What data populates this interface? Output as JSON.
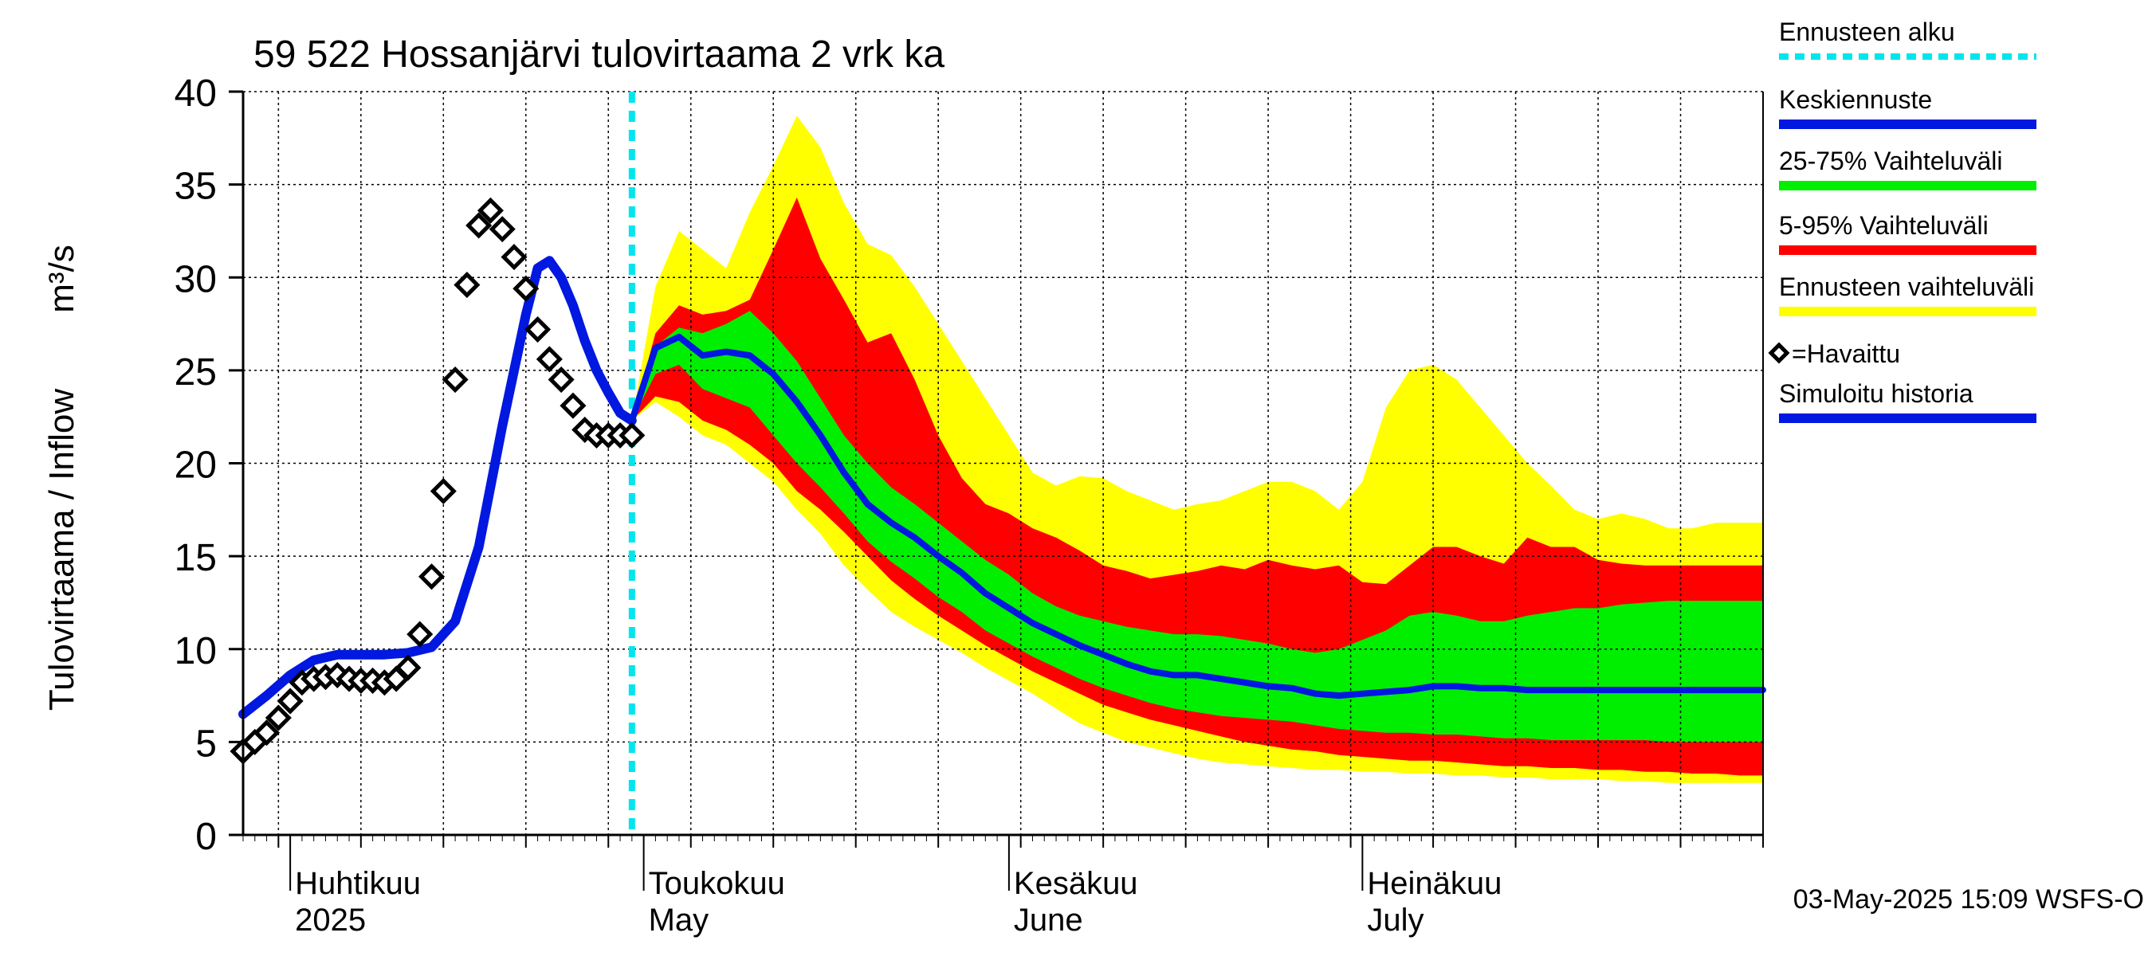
{
  "chart_data": {
    "type": "area",
    "title": "59 522 Hossanjärvi tulovirtaama 2 vrk ka",
    "ylabel_fi": "Tulovirtaama / Inflow",
    "ylabel_unit": "m³/s",
    "ylim": [
      0,
      40
    ],
    "yticks": [
      0,
      5,
      10,
      15,
      20,
      25,
      30,
      35,
      40
    ],
    "xlim": [
      "2025-03-28",
      "2025-08-04"
    ],
    "grid": true,
    "x_month_labels": [
      {
        "date": "2025-04-01",
        "line1": "Huhtikuu",
        "line2": "2025"
      },
      {
        "date": "2025-05-01",
        "line1": "Toukokuu",
        "line2": "May"
      },
      {
        "date": "2025-06-01",
        "line1": "Kesäkuu",
        "line2": "June"
      },
      {
        "date": "2025-07-01",
        "line1": "Heinäkuu",
        "line2": "July"
      }
    ],
    "forecast_start": "2025-04-30",
    "legend": {
      "placement": "right",
      "items": [
        {
          "label": "Ennusteen alku",
          "color": "#00e5ee",
          "style": "dotted"
        },
        {
          "label": "Keskiennuste",
          "color": "#0018e0",
          "style": "line"
        },
        {
          "label": "25-75% Vaihteluväli",
          "color": "#00ee00",
          "style": "line"
        },
        {
          "label": "5-95% Vaihteluväli",
          "color": "#ff0000",
          "style": "line"
        },
        {
          "label": "Ennusteen vaihteluväli",
          "color": "#ffff00",
          "style": "line"
        },
        {
          "label": "=Havaittu",
          "color": "#000000",
          "style": "diamond"
        },
        {
          "label": "Simuloitu historia",
          "color": "#0018e0",
          "style": "line"
        }
      ]
    },
    "footer": "03-May-2025 15:09 WSFS-O",
    "colors": {
      "yellow": "#ffff00",
      "red": "#ff0000",
      "green": "#00ee00",
      "blue": "#0018e0",
      "cyan": "#00e5ee"
    },
    "series": [
      {
        "name": "Simuloitu historia",
        "x": [
          "2025-03-28",
          "2025-03-30",
          "2025-04-01",
          "2025-04-03",
          "2025-04-05",
          "2025-04-07",
          "2025-04-09",
          "2025-04-11",
          "2025-04-13",
          "2025-04-15",
          "2025-04-17",
          "2025-04-19",
          "2025-04-20",
          "2025-04-21",
          "2025-04-22",
          "2025-04-23",
          "2025-04-24",
          "2025-04-25",
          "2025-04-26",
          "2025-04-27",
          "2025-04-28",
          "2025-04-29",
          "2025-04-30"
        ],
        "values": [
          6.5,
          7.5,
          8.6,
          9.4,
          9.7,
          9.7,
          9.7,
          9.8,
          10.1,
          11.5,
          15.5,
          22.0,
          25.0,
          28.0,
          30.5,
          30.9,
          30.0,
          28.5,
          26.6,
          25.0,
          23.8,
          22.7,
          22.3
        ]
      },
      {
        "name": "Keskiennuste",
        "x": [
          "2025-04-30",
          "2025-05-02",
          "2025-05-04",
          "2025-05-06",
          "2025-05-08",
          "2025-05-10",
          "2025-05-12",
          "2025-05-14",
          "2025-05-16",
          "2025-05-18",
          "2025-05-20",
          "2025-05-22",
          "2025-05-24",
          "2025-05-26",
          "2025-05-28",
          "2025-05-30",
          "2025-06-01",
          "2025-06-03",
          "2025-06-05",
          "2025-06-07",
          "2025-06-09",
          "2025-06-11",
          "2025-06-13",
          "2025-06-15",
          "2025-06-17",
          "2025-06-19",
          "2025-06-21",
          "2025-06-23",
          "2025-06-25",
          "2025-06-27",
          "2025-06-29",
          "2025-07-01",
          "2025-07-03",
          "2025-07-05",
          "2025-07-07",
          "2025-07-09",
          "2025-07-11",
          "2025-07-13",
          "2025-07-15",
          "2025-07-17",
          "2025-07-19",
          "2025-07-21",
          "2025-07-23",
          "2025-07-25",
          "2025-07-27",
          "2025-07-29",
          "2025-07-31",
          "2025-08-02",
          "2025-08-04"
        ],
        "values": [
          22.3,
          26.2,
          26.8,
          25.8,
          26.0,
          25.8,
          24.8,
          23.3,
          21.5,
          19.5,
          17.8,
          16.8,
          16.0,
          15.0,
          14.1,
          13.0,
          12.2,
          11.4,
          10.8,
          10.2,
          9.7,
          9.2,
          8.8,
          8.6,
          8.6,
          8.4,
          8.2,
          8.0,
          7.9,
          7.6,
          7.5,
          7.6,
          7.7,
          7.8,
          8.0,
          8.0,
          7.9,
          7.9,
          7.8,
          7.8,
          7.8,
          7.8,
          7.8,
          7.8,
          7.8,
          7.8,
          7.8,
          7.8,
          7.8
        ]
      },
      {
        "name": "=Havaittu",
        "x": [
          "2025-03-28",
          "2025-03-29",
          "2025-03-30",
          "2025-03-31",
          "2025-04-01",
          "2025-04-02",
          "2025-04-03",
          "2025-04-04",
          "2025-04-05",
          "2025-04-06",
          "2025-04-07",
          "2025-04-08",
          "2025-04-09",
          "2025-04-10",
          "2025-04-11",
          "2025-04-12",
          "2025-04-13",
          "2025-04-14",
          "2025-04-15",
          "2025-04-16",
          "2025-04-17",
          "2025-04-18",
          "2025-04-19",
          "2025-04-20",
          "2025-04-21",
          "2025-04-22",
          "2025-04-23",
          "2025-04-24",
          "2025-04-25",
          "2025-04-26",
          "2025-04-27",
          "2025-04-28",
          "2025-04-29",
          "2025-04-30"
        ],
        "values": [
          4.5,
          5.0,
          5.5,
          6.3,
          7.2,
          8.2,
          8.4,
          8.5,
          8.6,
          8.4,
          8.3,
          8.3,
          8.2,
          8.4,
          9.0,
          10.8,
          13.9,
          18.5,
          24.5,
          29.6,
          32.8,
          33.6,
          32.6,
          31.1,
          29.4,
          27.2,
          25.6,
          24.5,
          23.1,
          21.8,
          21.5,
          21.5,
          21.5,
          21.5
        ]
      }
    ],
    "bands": {
      "x": [
        "2025-04-30",
        "2025-05-02",
        "2025-05-04",
        "2025-05-06",
        "2025-05-08",
        "2025-05-10",
        "2025-05-12",
        "2025-05-14",
        "2025-05-16",
        "2025-05-18",
        "2025-05-20",
        "2025-05-22",
        "2025-05-24",
        "2025-05-26",
        "2025-05-28",
        "2025-05-30",
        "2025-06-01",
        "2025-06-03",
        "2025-06-05",
        "2025-06-07",
        "2025-06-09",
        "2025-06-11",
        "2025-06-13",
        "2025-06-15",
        "2025-06-17",
        "2025-06-19",
        "2025-06-21",
        "2025-06-23",
        "2025-06-25",
        "2025-06-27",
        "2025-06-29",
        "2025-07-01",
        "2025-07-03",
        "2025-07-05",
        "2025-07-07",
        "2025-07-09",
        "2025-07-11",
        "2025-07-13",
        "2025-07-15",
        "2025-07-17",
        "2025-07-19",
        "2025-07-21",
        "2025-07-23",
        "2025-07-25",
        "2025-07-27",
        "2025-07-29",
        "2025-07-31",
        "2025-08-02",
        "2025-08-04"
      ],
      "ennusteen_vaihteluvali": {
        "low": [
          22.3,
          23.3,
          22.5,
          21.5,
          21.0,
          20.0,
          19.0,
          17.5,
          16.2,
          14.5,
          13.2,
          12.0,
          11.2,
          10.5,
          9.8,
          9.0,
          8.3,
          7.6,
          6.8,
          6.0,
          5.5,
          5.0,
          4.7,
          4.4,
          4.1,
          3.9,
          3.8,
          3.7,
          3.6,
          3.5,
          3.5,
          3.4,
          3.4,
          3.3,
          3.3,
          3.2,
          3.2,
          3.1,
          3.1,
          3.0,
          3.0,
          3.0,
          2.9,
          2.9,
          2.8,
          2.8,
          2.8,
          2.8,
          2.8
        ],
        "high": [
          22.3,
          29.5,
          32.5,
          31.5,
          30.5,
          33.5,
          36.0,
          38.7,
          37.0,
          34.0,
          31.8,
          31.2,
          29.5,
          27.5,
          25.5,
          23.5,
          21.5,
          19.5,
          18.8,
          19.3,
          19.2,
          18.5,
          18.0,
          17.5,
          17.8,
          18.0,
          18.5,
          19.0,
          19.0,
          18.5,
          17.5,
          19.0,
          23.0,
          25.0,
          25.3,
          24.5,
          23.0,
          21.5,
          20.0,
          18.8,
          17.5,
          17.0,
          17.3,
          17.0,
          16.5,
          16.5,
          16.8,
          16.8,
          16.8
        ]
      },
      "p5_95": {
        "low": [
          22.3,
          23.6,
          23.3,
          22.3,
          21.8,
          21.0,
          20.0,
          18.5,
          17.5,
          16.3,
          15.0,
          13.7,
          12.7,
          11.8,
          11.0,
          10.2,
          9.5,
          8.8,
          8.2,
          7.6,
          7.0,
          6.6,
          6.2,
          5.9,
          5.6,
          5.3,
          5.0,
          4.8,
          4.6,
          4.5,
          4.3,
          4.2,
          4.1,
          4.0,
          4.0,
          3.9,
          3.8,
          3.7,
          3.7,
          3.6,
          3.6,
          3.5,
          3.5,
          3.4,
          3.4,
          3.3,
          3.3,
          3.2,
          3.2
        ],
        "high": [
          22.3,
          27.0,
          28.5,
          28.0,
          28.2,
          28.8,
          31.5,
          34.3,
          31.0,
          28.8,
          26.5,
          27.0,
          24.5,
          21.5,
          19.2,
          17.8,
          17.3,
          16.5,
          16.0,
          15.3,
          14.5,
          14.2,
          13.8,
          14.0,
          14.2,
          14.5,
          14.3,
          14.8,
          14.5,
          14.3,
          14.5,
          13.6,
          13.5,
          14.5,
          15.5,
          15.5,
          15.0,
          14.6,
          16.0,
          15.5,
          15.5,
          14.8,
          14.6,
          14.5,
          14.5,
          14.5,
          14.5,
          14.5,
          14.5
        ]
      },
      "p25_75": {
        "low": [
          22.3,
          24.8,
          25.3,
          24.0,
          23.5,
          23.0,
          21.5,
          20.0,
          18.7,
          17.3,
          15.8,
          14.7,
          13.8,
          12.8,
          12.0,
          11.0,
          10.3,
          9.6,
          9.0,
          8.4,
          7.9,
          7.5,
          7.1,
          6.8,
          6.6,
          6.4,
          6.3,
          6.2,
          6.1,
          5.9,
          5.7,
          5.6,
          5.5,
          5.5,
          5.4,
          5.4,
          5.3,
          5.2,
          5.2,
          5.1,
          5.1,
          5.1,
          5.1,
          5.1,
          5.0,
          5.0,
          5.0,
          5.0,
          5.0
        ],
        "high": [
          22.3,
          26.3,
          27.3,
          27.0,
          27.5,
          28.2,
          27.0,
          25.5,
          23.5,
          21.5,
          20.0,
          18.7,
          17.8,
          16.8,
          15.8,
          14.8,
          14.0,
          13.0,
          12.3,
          11.8,
          11.5,
          11.2,
          11.0,
          10.8,
          10.8,
          10.7,
          10.5,
          10.3,
          10.0,
          9.8,
          10.0,
          10.5,
          11.0,
          11.8,
          12.0,
          11.8,
          11.5,
          11.5,
          11.8,
          12.0,
          12.2,
          12.2,
          12.4,
          12.5,
          12.6,
          12.6,
          12.6,
          12.6,
          12.6
        ]
      }
    }
  }
}
